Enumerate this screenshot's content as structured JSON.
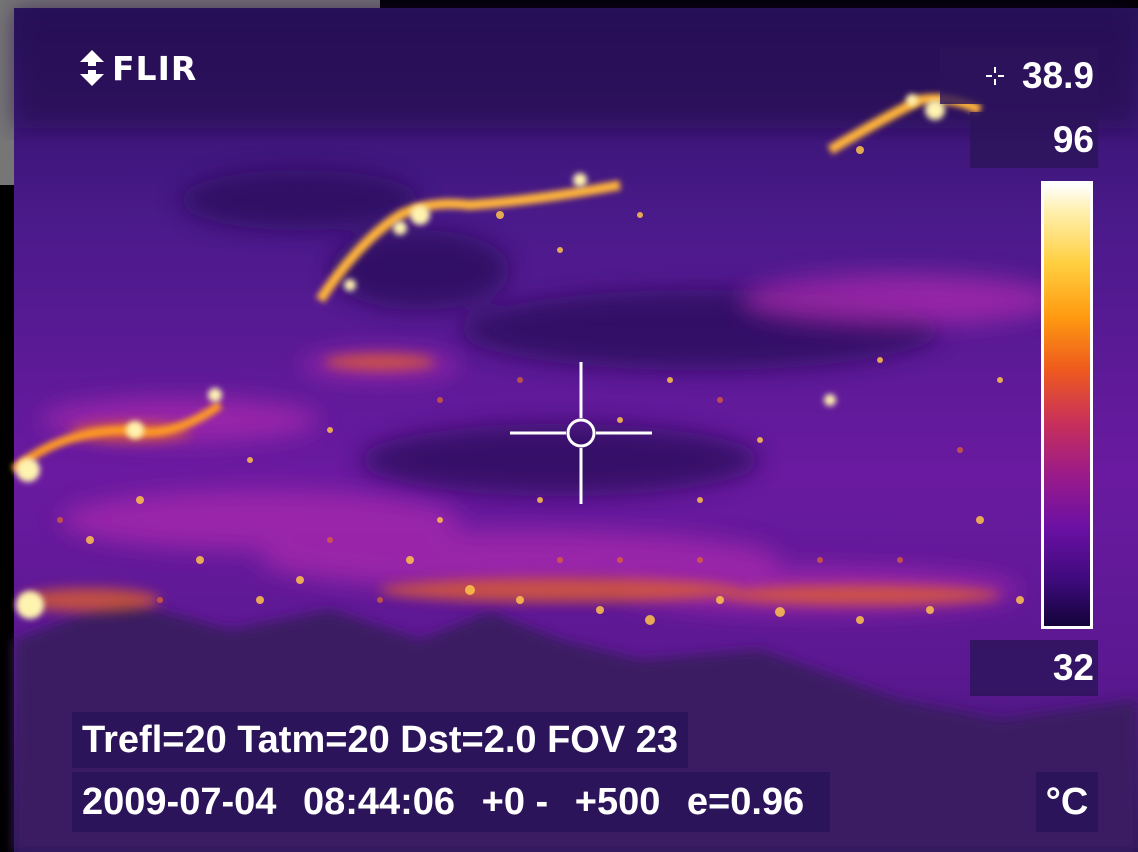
{
  "brand": {
    "name": "FLIR",
    "icon": "flir-logo-icon"
  },
  "measurement": {
    "spot_temp": "38.9",
    "spot_icon": "spot-marker-icon"
  },
  "scale": {
    "max": "96",
    "min": "32",
    "unit": "°C",
    "palette": "iron"
  },
  "parameters": {
    "trefl": "Trefl=20",
    "tatm": "Tatm=20",
    "dst": "Dst=2.0",
    "fov": "FOV 23"
  },
  "status": {
    "date": "2009-07-04",
    "time": "08:44:06",
    "offset": "+0 -",
    "range": "+500",
    "emissivity": "e=0.96"
  },
  "colors": {
    "hot": "#ffe89a",
    "mid": "#e8701e",
    "cool": "#7a18a8",
    "cold": "#2a0a58",
    "overlay_bg": "#2c145a"
  }
}
